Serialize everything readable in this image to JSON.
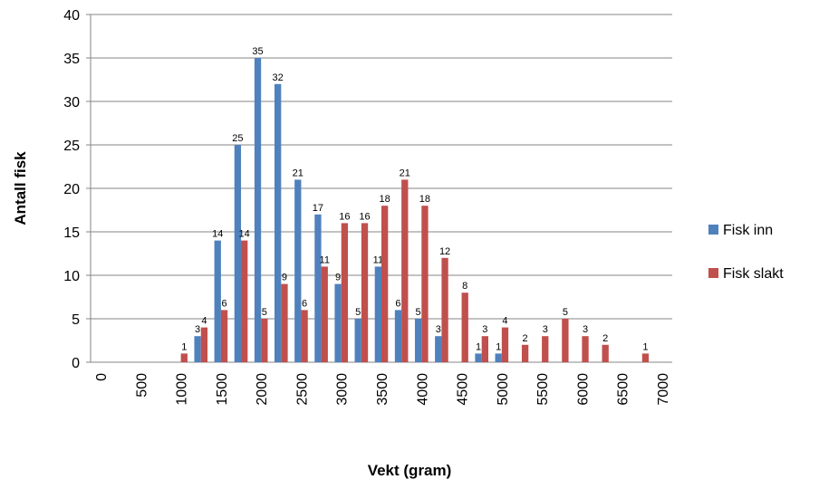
{
  "chart_data": {
    "type": "bar",
    "x_label": "Vekt (gram)",
    "y_label": "Antall fisk",
    "categories": [
      "0",
      null,
      "500",
      null,
      "1000",
      null,
      "1500",
      null,
      "2000",
      null,
      "2500",
      null,
      "3000",
      null,
      "3500",
      null,
      "4000",
      null,
      "4500",
      null,
      "5000",
      null,
      "5500",
      null,
      "6000",
      null,
      "6500",
      null,
      "7000"
    ],
    "series": [
      {
        "name": "Fisk inn",
        "color": "#4f81bd",
        "values": [
          null,
          null,
          null,
          null,
          null,
          3,
          14,
          25,
          35,
          32,
          21,
          17,
          9,
          5,
          11,
          6,
          5,
          3,
          null,
          1,
          1,
          null,
          null,
          null,
          null,
          null,
          null,
          null,
          null
        ]
      },
      {
        "name": "Fisk slakt",
        "color": "#c0504d",
        "values": [
          null,
          null,
          null,
          null,
          1,
          4,
          6,
          14,
          5,
          9,
          6,
          11,
          16,
          16,
          18,
          21,
          18,
          12,
          8,
          3,
          4,
          2,
          3,
          5,
          3,
          2,
          null,
          1,
          null
        ]
      }
    ],
    "ylim": [
      0,
      40
    ],
    "yticks": [
      0,
      5,
      10,
      15,
      20,
      25,
      30,
      35,
      40
    ],
    "grid": true,
    "legend": "right"
  }
}
